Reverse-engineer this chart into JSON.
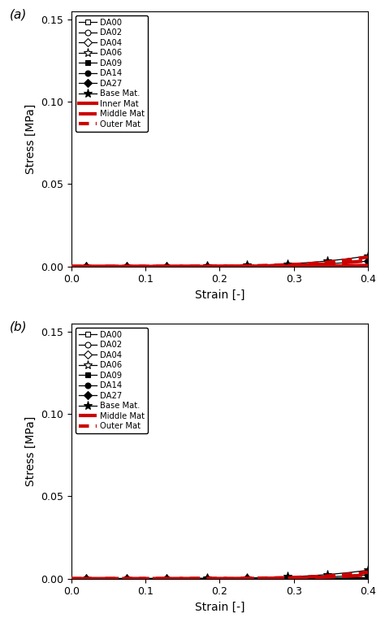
{
  "panel_a": {
    "label": "(a)",
    "da_series": [
      {
        "name": "DA00",
        "marker": "s",
        "filled": false,
        "C": 0.0008,
        "n": 4.5
      },
      {
        "name": "DA02",
        "marker": "o",
        "filled": false,
        "C": 0.0015,
        "n": 4.5
      },
      {
        "name": "DA04",
        "marker": "D",
        "filled": false,
        "C": 0.003,
        "n": 4.5
      },
      {
        "name": "DA06",
        "marker": "*",
        "filled": false,
        "C": 0.006,
        "n": 4.5
      },
      {
        "name": "DA09",
        "marker": "s",
        "filled": true,
        "C": 0.025,
        "n": 4.5
      },
      {
        "name": "DA14",
        "marker": "o",
        "filled": true,
        "C": 0.065,
        "n": 4.5
      },
      {
        "name": "DA27",
        "marker": "D",
        "filled": true,
        "C": 0.2,
        "n": 4.5
      },
      {
        "name": "Base Mat.",
        "marker": "*",
        "filled": true,
        "C": 0.4,
        "n": 4.5
      }
    ],
    "red_series": [
      {
        "name": "Inner Mat",
        "style": "solid",
        "lw": 3.0,
        "C": 0.1,
        "n": 5.5
      },
      {
        "name": "Middle Mat",
        "style": "dashed",
        "lw": 3.0,
        "C": 0.55,
        "n": 5.5
      },
      {
        "name": "Outer Mat",
        "style": "dotted",
        "lw": 3.0,
        "C": 0.9,
        "n": 5.5
      }
    ]
  },
  "panel_b": {
    "label": "(b)",
    "da_series": [
      {
        "name": "DA00",
        "marker": "s",
        "filled": false,
        "C": 0.0004,
        "n": 5.0
      },
      {
        "name": "DA02",
        "marker": "o",
        "filled": false,
        "C": 0.0009,
        "n": 5.0
      },
      {
        "name": "DA04",
        "marker": "D",
        "filled": false,
        "C": 0.002,
        "n": 5.0
      },
      {
        "name": "DA06",
        "marker": "*",
        "filled": false,
        "C": 0.004,
        "n": 5.0
      },
      {
        "name": "DA09",
        "marker": "s",
        "filled": true,
        "C": 0.02,
        "n": 5.0
      },
      {
        "name": "DA14",
        "marker": "o",
        "filled": true,
        "C": 0.055,
        "n": 5.0
      },
      {
        "name": "DA27",
        "marker": "D",
        "filled": true,
        "C": 0.22,
        "n": 5.0
      },
      {
        "name": "Base Mat.",
        "marker": "*",
        "filled": true,
        "C": 0.5,
        "n": 5.0
      }
    ],
    "red_series": [
      {
        "name": "Middle Mat",
        "style": "dashed",
        "lw": 3.0,
        "C": 0.55,
        "n": 6.0
      },
      {
        "name": "Outer Mat",
        "style": "dotted",
        "lw": 3.0,
        "C": 0.95,
        "n": 6.0
      }
    ]
  },
  "xlim": [
    0,
    0.4
  ],
  "ylim": [
    0,
    0.155
  ],
  "xlabel": "Strain [-]",
  "ylabel": "Stress [MPa]",
  "n_points": 200,
  "black_color": "#000000",
  "red_color": "#cc0000",
  "marker_size_default": 5,
  "marker_size_star": 8,
  "lw_black": 0.9
}
